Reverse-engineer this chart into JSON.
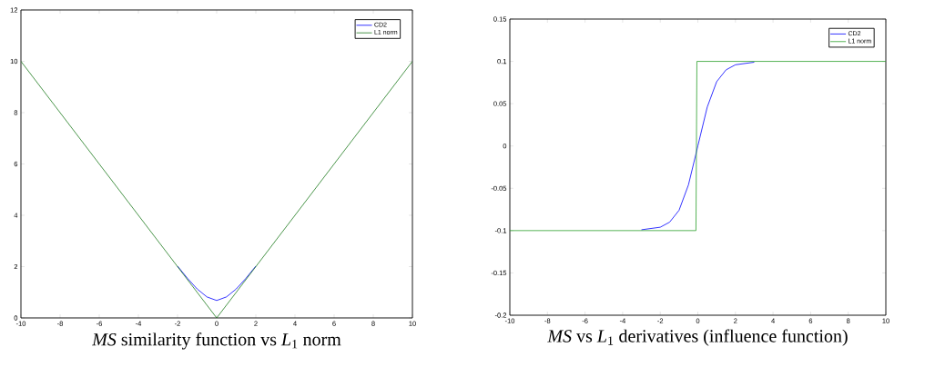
{
  "chart_data": [
    {
      "type": "line",
      "title": "*MS* similarity function vs *L*$_{1}$ norm",
      "xlim": [
        -10,
        10
      ],
      "ylim": [
        0,
        12
      ],
      "xticks": [
        -10,
        -8,
        -6,
        -4,
        -2,
        0,
        2,
        4,
        6,
        8,
        10
      ],
      "yticks": [
        0,
        2,
        4,
        6,
        8,
        10,
        12
      ],
      "legend": "top right",
      "series": [
        {
          "name": "CD2",
          "color": "#0000ff",
          "x": [
            -2,
            -1.5,
            -1,
            -0.5,
            0,
            0.5,
            1,
            1.5,
            2
          ],
          "values": [
            2.02,
            1.55,
            1.13,
            0.82,
            0.68,
            0.82,
            1.13,
            1.55,
            2.02
          ]
        },
        {
          "name": "L1 norm",
          "color": "#1e7b1e",
          "x": [
            -10,
            0,
            10
          ],
          "values": [
            10,
            0,
            10
          ]
        }
      ]
    },
    {
      "type": "line",
      "title": "*MS* vs *L*$_{1}$ derivatives (influence function)",
      "xlim": [
        -10,
        10
      ],
      "ylim": [
        -0.2,
        0.15
      ],
      "xticks": [
        -10,
        -8,
        -6,
        -4,
        -2,
        0,
        2,
        4,
        6,
        8,
        10
      ],
      "yticks": [
        -0.2,
        -0.15,
        -0.1,
        -0.05,
        0,
        0.05,
        0.1,
        0.15
      ],
      "legend": "top right",
      "series": [
        {
          "name": "CD2",
          "color": "#0000ff",
          "x": [
            -3,
            -2,
            -1.5,
            -1,
            -0.5,
            0,
            0.5,
            1,
            1.5,
            2,
            3
          ],
          "values": [
            -0.099,
            -0.096,
            -0.09,
            -0.076,
            -0.046,
            0,
            0.046,
            0.076,
            0.09,
            0.096,
            0.099
          ]
        },
        {
          "name": "L1 norm",
          "color": "#2ca02c",
          "x": [
            -10,
            -0.1,
            -0.05,
            10
          ],
          "values": [
            -0.1,
            -0.1,
            0.1,
            0.1
          ]
        }
      ]
    }
  ]
}
